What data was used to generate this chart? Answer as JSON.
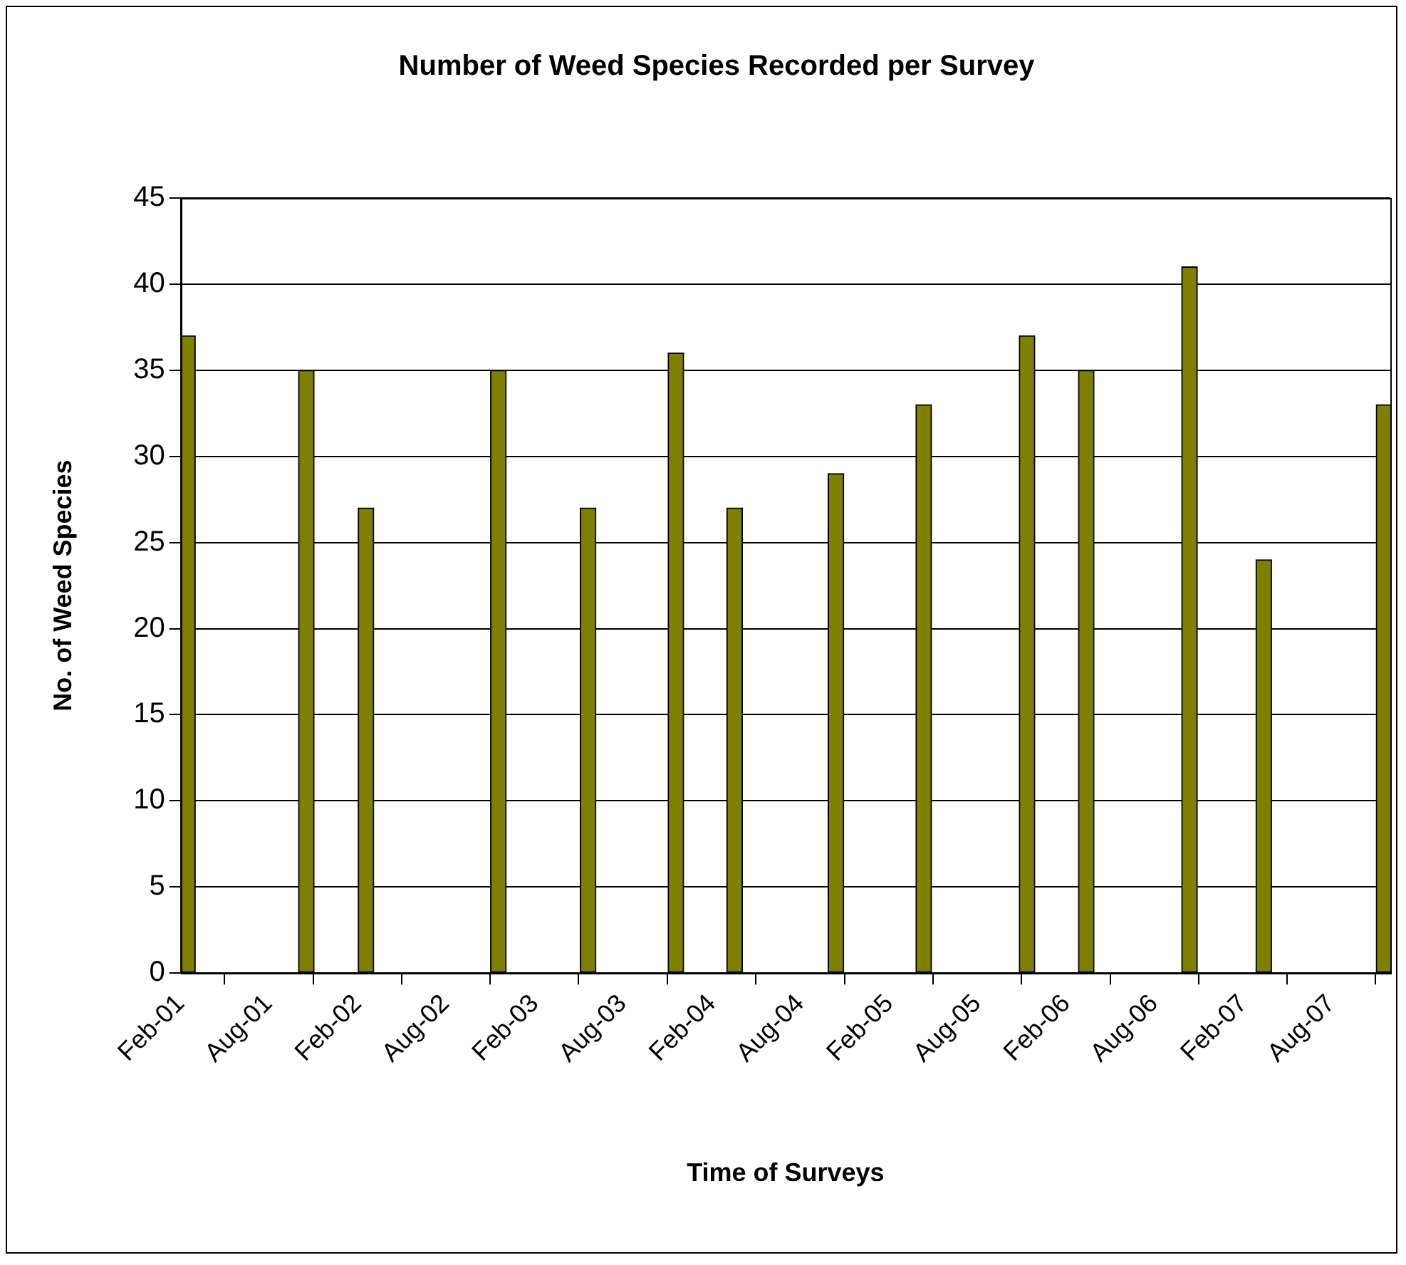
{
  "chart_data": {
    "type": "bar",
    "title": "Number of Weed Species Recorded per Survey",
    "xlabel": "Time of Surveys",
    "ylabel": "No. of Weed Species",
    "x": [
      "2001-02-15",
      "2001-10-18",
      "2002-02-18",
      "2002-11-18",
      "2003-05-22",
      "2003-11-19",
      "2004-03-19",
      "2004-10-14",
      "2005-04-13",
      "2005-11-12",
      "2006-03-14",
      "2006-10-13",
      "2007-03-15",
      "2007-11-18"
    ],
    "values": [
      37,
      35,
      27,
      35,
      27,
      36,
      27,
      29,
      33,
      37,
      35,
      41,
      24,
      33
    ],
    "color": "#808000",
    "xlim": [
      "2001-02-01",
      "2007-12-01"
    ],
    "xticks": [
      {
        "value": "2001-02",
        "label": "Feb-01"
      },
      {
        "value": "2001-08",
        "label": "Aug-01"
      },
      {
        "value": "2002-02",
        "label": "Feb-02"
      },
      {
        "value": "2002-08",
        "label": "Aug-02"
      },
      {
        "value": "2003-02",
        "label": "Feb-03"
      },
      {
        "value": "2003-08",
        "label": "Aug-03"
      },
      {
        "value": "2004-02",
        "label": "Feb-04"
      },
      {
        "value": "2004-08",
        "label": "Aug-04"
      },
      {
        "value": "2005-02",
        "label": "Feb-05"
      },
      {
        "value": "2005-08",
        "label": "Aug-05"
      },
      {
        "value": "2006-02",
        "label": "Feb-06"
      },
      {
        "value": "2006-08",
        "label": "Aug-06"
      },
      {
        "value": "2007-02",
        "label": "Feb-07"
      },
      {
        "value": "2007-08",
        "label": "Aug-07"
      }
    ],
    "ylim": [
      0,
      45
    ],
    "yticks": [
      0,
      5,
      10,
      15,
      20,
      25,
      30,
      35,
      40,
      45
    ],
    "grid": "y",
    "legend": false
  }
}
